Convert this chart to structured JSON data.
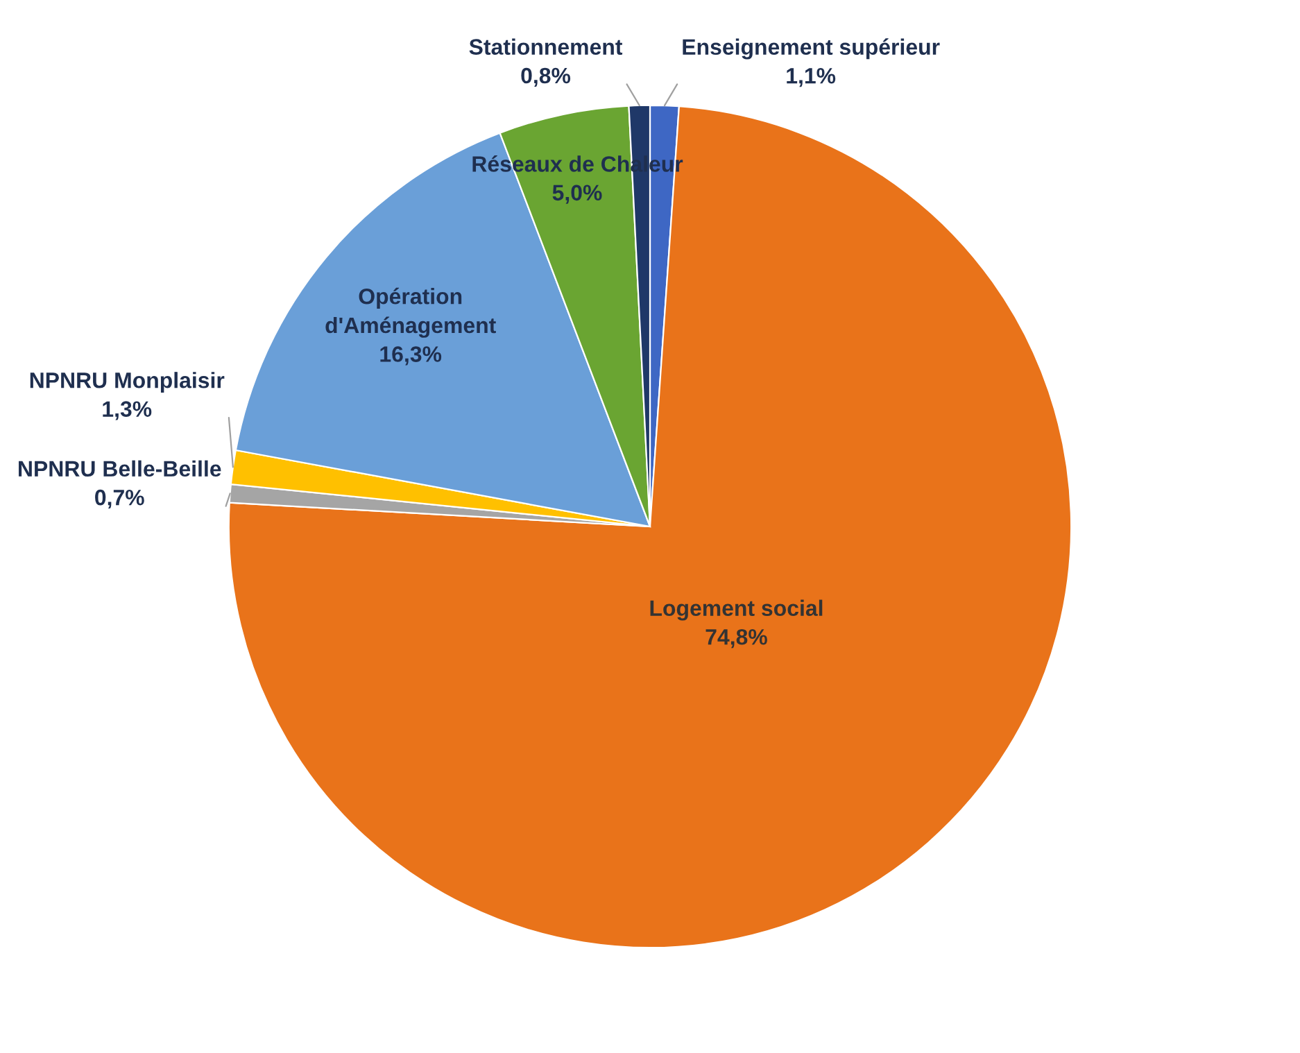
{
  "chart_data": {
    "type": "pie",
    "categories": [
      "Enseignement supérieur",
      "Logement social",
      "NPNRU Belle-Beille",
      "NPNRU Monplaisir",
      "Opération d'Aménagement",
      "Réseaux de Chaleur",
      "Stationnement"
    ],
    "values": [
      1.1,
      74.8,
      0.7,
      1.3,
      16.3,
      5.0,
      0.8
    ],
    "value_labels": [
      "1,1%",
      "74,8%",
      "0,7%",
      "1,3%",
      "16,3%",
      "5,0%",
      "0,8%"
    ],
    "colors": [
      "#3e67c4",
      "#e9731a",
      "#a5a5a5",
      "#ffc000",
      "#6a9fd8",
      "#6aa532",
      "#1f3868"
    ],
    "legend": false
  }
}
